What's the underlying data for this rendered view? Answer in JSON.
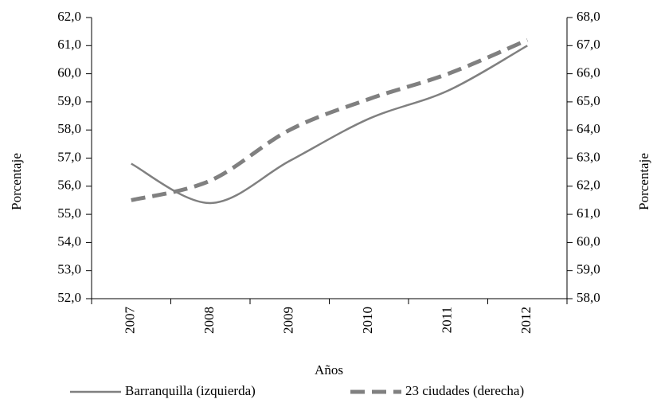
{
  "chart_data": {
    "type": "line",
    "xlabel": "Años",
    "ylabel": "Porcentaje",
    "y2label": "Porcentaje",
    "categories": [
      "2007",
      "2008",
      "2009",
      "2010",
      "2011",
      "2012"
    ],
    "series": [
      {
        "name": "Barranquilla (izquierda)",
        "color": "#808080",
        "values": [
          56.8,
          55.4,
          56.9,
          58.4,
          59.4,
          61.0
        ],
        "axis": "y",
        "style": "solid"
      },
      {
        "name": "23 ciudades (derecha)",
        "color": "#808080",
        "values": [
          61.5,
          62.2,
          64.0,
          65.1,
          66.0,
          67.2
        ],
        "axis": "y2",
        "style": "dashed"
      }
    ],
    "ylim": [
      52,
      62
    ],
    "yticks": [
      {
        "value": 52,
        "label": "52,0"
      },
      {
        "value": 53,
        "label": "53,0"
      },
      {
        "value": 54,
        "label": "54,0"
      },
      {
        "value": 55,
        "label": "55,0"
      },
      {
        "value": 56,
        "label": "56,0"
      },
      {
        "value": 57,
        "label": "57,0"
      },
      {
        "value": 58,
        "label": "58,0"
      },
      {
        "value": 59,
        "label": "59,0"
      },
      {
        "value": 60,
        "label": "60,0"
      },
      {
        "value": 61,
        "label": "61,0"
      },
      {
        "value": 62,
        "label": "62,0"
      }
    ],
    "y2lim": [
      58,
      68
    ],
    "y2ticks": [
      {
        "value": 58,
        "label": "58,0"
      },
      {
        "value": 59,
        "label": "59,0"
      },
      {
        "value": 60,
        "label": "60,0"
      },
      {
        "value": 61,
        "label": "61,0"
      },
      {
        "value": 62,
        "label": "62,0"
      },
      {
        "value": 63,
        "label": "63,0"
      },
      {
        "value": 64,
        "label": "64,0"
      },
      {
        "value": 65,
        "label": "65,0"
      },
      {
        "value": 66,
        "label": "66,0"
      },
      {
        "value": 67,
        "label": "67,0"
      },
      {
        "value": 68,
        "label": "68,0"
      }
    ],
    "grid": false,
    "legend": "bottom"
  }
}
